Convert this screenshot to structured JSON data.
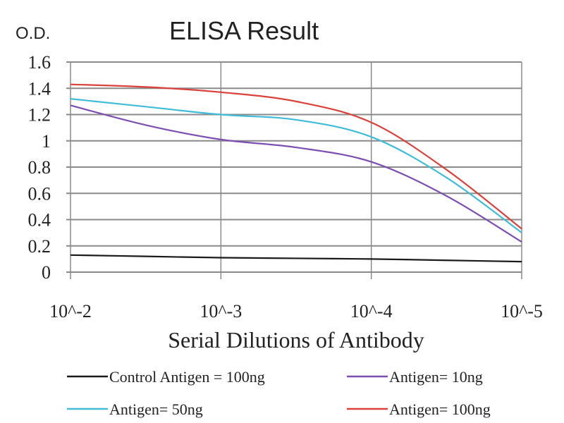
{
  "chart_data": {
    "type": "line",
    "title": "ELISA Result",
    "ylabel": "O.D.",
    "xlabel": "Serial Dilutions of Antibody",
    "x_scale": "log",
    "x": [
      0.01,
      0.00316,
      0.001,
      0.000316,
      0.0001,
      3.16e-05,
      1e-05
    ],
    "x_tick_values": [
      0.01,
      0.001,
      0.0001,
      1e-05
    ],
    "x_tick_labels": [
      "10^-2",
      "10^-3",
      "10^-4",
      "10^-5"
    ],
    "ylim": [
      0,
      1.6
    ],
    "y_ticks": [
      "0",
      "0.2",
      "0.4",
      "0.6",
      "0.8",
      "1",
      "1.2",
      "1.4",
      "1.6"
    ],
    "grid": true,
    "legend_position": "bottom",
    "series": [
      {
        "name": "Control Antigen = 100ng",
        "color": "#1a1a1a",
        "values": [
          0.13,
          0.12,
          0.11,
          0.105,
          0.1,
          0.09,
          0.08
        ]
      },
      {
        "name": "Antigen= 10ng",
        "color": "#7b4fb0",
        "values": [
          1.27,
          1.12,
          1.01,
          0.95,
          0.84,
          0.58,
          0.23
        ]
      },
      {
        "name": "Antigen= 50ng",
        "color": "#3fbcd6",
        "values": [
          1.32,
          1.26,
          1.2,
          1.16,
          1.03,
          0.72,
          0.3
        ]
      },
      {
        "name": "Antigen= 100ng",
        "color": "#d9413a",
        "values": [
          1.43,
          1.41,
          1.37,
          1.3,
          1.14,
          0.78,
          0.33
        ]
      }
    ]
  }
}
